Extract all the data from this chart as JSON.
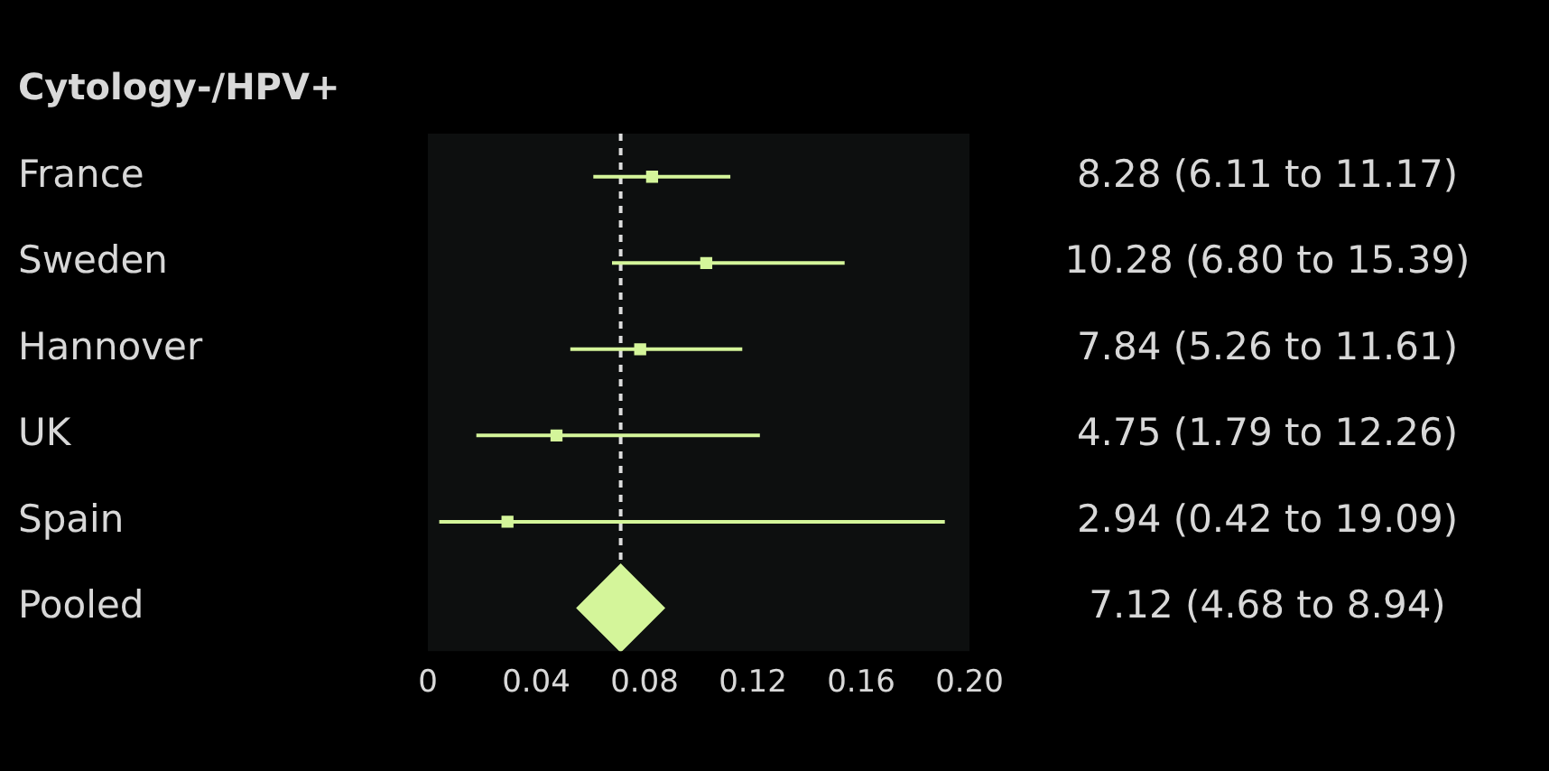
{
  "chart_data": {
    "type": "scatter",
    "orientation": "horizontal",
    "title": "Cytology-/HPV+",
    "categories": [
      "France",
      "Sweden",
      "Hannover",
      "UK",
      "Spain",
      "Pooled"
    ],
    "series": [
      {
        "color": "#d4f59a",
        "marker": "square",
        "values": [
          0.0828,
          0.1028,
          0.0784,
          0.0475,
          0.0294,
          null
        ],
        "errors": [
          [
            0.0611,
            0.1117
          ],
          [
            0.068,
            0.1539
          ],
          [
            0.0526,
            0.1161
          ],
          [
            0.0179,
            0.1226
          ],
          [
            0.0042,
            0.1909
          ],
          null
        ]
      },
      {
        "color": "#d4f59a",
        "marker": "diamond",
        "values": [
          null,
          null,
          null,
          null,
          null,
          0.0712
        ]
      }
    ],
    "annotations": [
      "8.28 (6.11 to 11.17)",
      "10.28 (6.80 to 15.39)",
      "7.84 (5.26 to 11.61)",
      "4.75 (1.79 to 12.26)",
      "2.94 (0.42 to 19.09)",
      "7.12 (4.68 to 8.94)"
    ],
    "xlim": [
      0,
      0.2
    ],
    "xticks": [
      0,
      0.04,
      0.08,
      0.12,
      0.16,
      {
        "value": 0.2,
        "label": "0.20"
      }
    ],
    "ref_lines": [
      {
        "axis": "x",
        "value": 0.0712,
        "color": "#dddddd",
        "line_style": "dashed"
      }
    ],
    "grid": false,
    "legend": false
  }
}
